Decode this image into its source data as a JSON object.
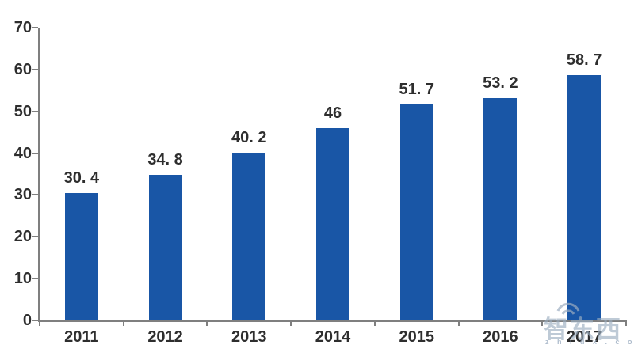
{
  "chart_data": {
    "type": "bar",
    "title": "",
    "xlabel": "",
    "ylabel": "",
    "categories": [
      "2011",
      "2012",
      "2013",
      "2014",
      "2015",
      "2016",
      "2017"
    ],
    "values": [
      30.4,
      34.8,
      40.2,
      46,
      51.7,
      53.2,
      58.7
    ],
    "value_labels": [
      "30. 4",
      "34. 8",
      "40. 2",
      "46",
      "51. 7",
      "53. 2",
      "58. 7"
    ],
    "ylim": [
      0,
      70
    ],
    "yticks": [
      "0",
      "10",
      "20",
      "30",
      "40",
      "50",
      "60",
      "70"
    ],
    "grid": false,
    "legend": "none",
    "bar_color": "#1956a6",
    "axis_color": "#7f7f7f",
    "text_color": "#2e2e2e"
  },
  "watermark": {
    "logo_text": "智东西",
    "sub_text": "z h i d x . c o m"
  }
}
